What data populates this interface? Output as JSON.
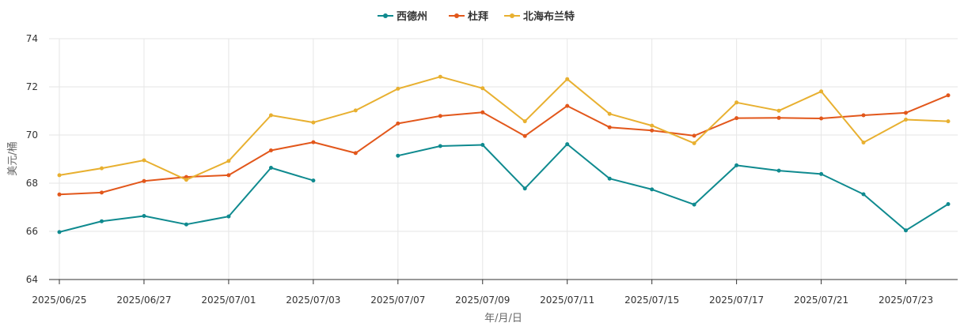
{
  "chart_data": {
    "type": "line",
    "title": "",
    "xlabel": "年/月/日",
    "ylabel": "美元/桶",
    "ylim": [
      64,
      74
    ],
    "yticks": [
      64,
      66,
      68,
      70,
      72,
      74
    ],
    "grid": true,
    "legend_position": "top-center",
    "x": [
      "2025/06/25",
      "2025/06/26",
      "2025/06/27",
      "2025/06/30",
      "2025/07/01",
      "2025/07/02",
      "2025/07/03",
      "2025/07/04",
      "2025/07/07",
      "2025/07/08",
      "2025/07/09",
      "2025/07/10",
      "2025/07/11",
      "2025/07/14",
      "2025/07/15",
      "2025/07/16",
      "2025/07/17",
      "2025/07/18",
      "2025/07/21",
      "2025/07/22",
      "2025/07/23",
      "2025/07/24"
    ],
    "xtick_labels": [
      "2025/06/25",
      "2025/06/27",
      "2025/07/01",
      "2025/07/03",
      "2025/07/07",
      "2025/07/09",
      "2025/07/11",
      "2025/07/15",
      "2025/07/17",
      "2025/07/21",
      "2025/07/23"
    ],
    "series": [
      {
        "name": "西德州",
        "color": "#0f8a8f",
        "values": [
          65.97,
          66.42,
          66.64,
          66.29,
          66.62,
          68.64,
          68.11,
          null,
          69.14,
          69.54,
          69.59,
          67.78,
          69.62,
          68.19,
          67.74,
          67.11,
          68.74,
          68.52,
          68.38,
          67.54,
          66.04,
          67.13
        ]
      },
      {
        "name": "杜拜",
        "color": "#e2571b",
        "values": [
          67.53,
          67.61,
          68.09,
          68.26,
          68.33,
          69.36,
          69.7,
          69.25,
          70.48,
          70.79,
          70.94,
          69.96,
          71.21,
          70.32,
          70.19,
          69.97,
          70.7,
          70.71,
          70.69,
          70.82,
          70.92,
          71.65
        ]
      },
      {
        "name": "北海布兰特",
        "color": "#e8b030",
        "values": [
          68.33,
          68.62,
          68.95,
          68.14,
          68.92,
          70.82,
          70.52,
          71.02,
          71.92,
          72.42,
          71.94,
          70.57,
          72.32,
          70.88,
          70.39,
          69.66,
          71.35,
          71.01,
          71.81,
          69.69,
          70.64,
          70.57
        ]
      }
    ]
  }
}
